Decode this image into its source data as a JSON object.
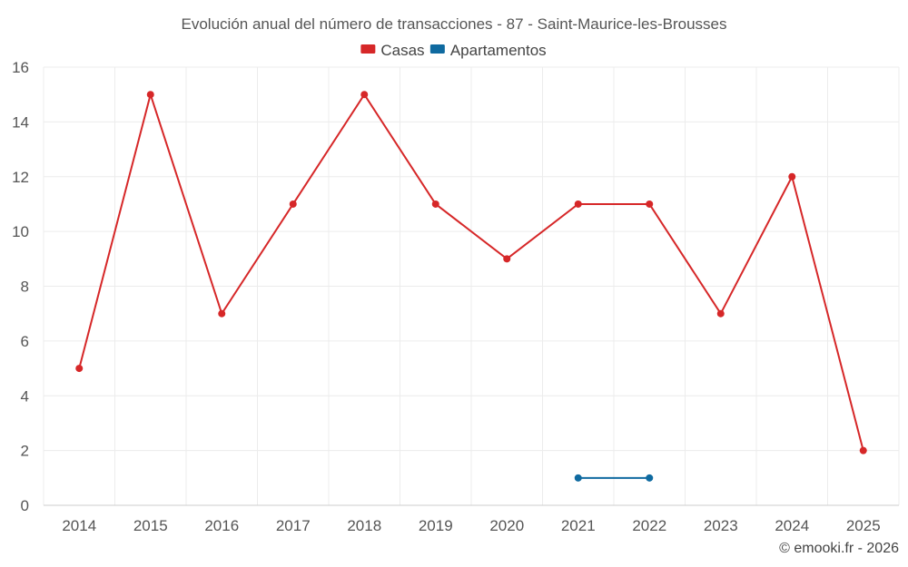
{
  "chart_data": {
    "type": "line",
    "title": "Evolución anual del número de transacciones - 87 - Saint-Maurice-les-Brousses",
    "categories": [
      "2014",
      "2015",
      "2016",
      "2017",
      "2018",
      "2019",
      "2020",
      "2021",
      "2022",
      "2023",
      "2024",
      "2025"
    ],
    "series": [
      {
        "name": "Casas",
        "color": "#d62728",
        "values": [
          5,
          15,
          7,
          11,
          15,
          11,
          9,
          11,
          11,
          7,
          12,
          2
        ]
      },
      {
        "name": "Apartamentos",
        "color": "#0f6aa0",
        "values": [
          null,
          null,
          null,
          null,
          null,
          null,
          null,
          1,
          1,
          null,
          null,
          null
        ]
      }
    ],
    "ylim": [
      0,
      16
    ],
    "yticks": [
      0,
      2,
      4,
      6,
      8,
      10,
      12,
      14,
      16
    ],
    "xlabel": "",
    "ylabel": "",
    "grid": true,
    "legend": "top-center"
  },
  "credit": "© emooki.fr - 2026"
}
